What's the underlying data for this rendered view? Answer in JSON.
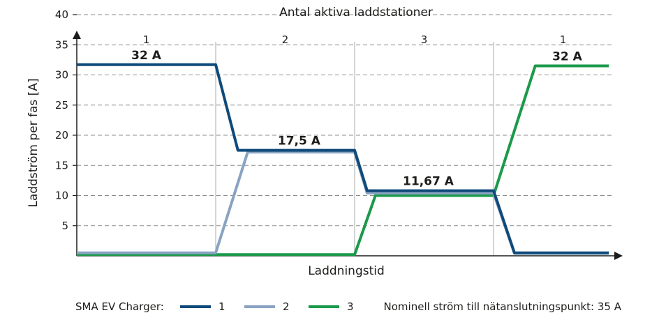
{
  "chart_data": {
    "type": "line",
    "title": "Antal aktiva laddstationer",
    "xlabel": "Laddningstid",
    "ylabel": "Laddström per fas [A]",
    "ylim": [
      0,
      40
    ],
    "yticks": [
      5,
      10,
      15,
      20,
      25,
      30,
      35,
      40
    ],
    "grid": true,
    "phases": [
      {
        "label": "1",
        "x_range": [
          0,
          1
        ]
      },
      {
        "label": "2",
        "x_range": [
          1,
          2
        ]
      },
      {
        "label": "3",
        "x_range": [
          2,
          3
        ]
      },
      {
        "label": "1",
        "x_range": [
          3,
          4
        ]
      }
    ],
    "series": [
      {
        "name": "1",
        "color": "#0f4a7a",
        "points": [
          [
            0,
            31.7
          ],
          [
            1,
            31.7
          ],
          [
            1.16,
            17.5
          ],
          [
            2,
            17.5
          ],
          [
            2.09,
            10.8
          ],
          [
            3,
            10.8
          ],
          [
            3.15,
            0.5
          ],
          [
            3.83,
            0.5
          ]
        ]
      },
      {
        "name": "2",
        "color": "#8aa3c2",
        "points": [
          [
            0,
            0.5
          ],
          [
            1,
            0.5
          ],
          [
            1.23,
            17.2
          ],
          [
            2,
            17.2
          ],
          [
            2.09,
            10.4
          ],
          [
            3,
            10.4
          ],
          [
            3.15,
            0.4
          ],
          [
            3.83,
            0.4
          ]
        ]
      },
      {
        "name": "3",
        "color": "#1a9a4a",
        "points": [
          [
            0,
            0.2
          ],
          [
            2,
            0.2
          ],
          [
            2.15,
            10.0
          ],
          [
            3,
            10.0
          ],
          [
            3.3,
            31.5
          ],
          [
            3.83,
            31.5
          ]
        ]
      }
    ],
    "annotations": [
      {
        "text": "32 A",
        "x": 0.5,
        "y": 31.7
      },
      {
        "text": "17,5 A",
        "x": 1.6,
        "y": 17.5
      },
      {
        "text": "11,67 A",
        "x": 2.53,
        "y": 10.8
      },
      {
        "text": "32 A",
        "x": 3.53,
        "y": 31.5
      }
    ],
    "legend": {
      "title": "SMA EV Charger:",
      "items": [
        {
          "label": "1",
          "color": "#0f4a7a"
        },
        {
          "label": "2",
          "color": "#8aa3c2"
        },
        {
          "label": "3",
          "color": "#1a9a4a"
        }
      ],
      "placement": "bottom"
    },
    "note": "Nominell ström till nätanslutningspunkt: 35 A"
  }
}
